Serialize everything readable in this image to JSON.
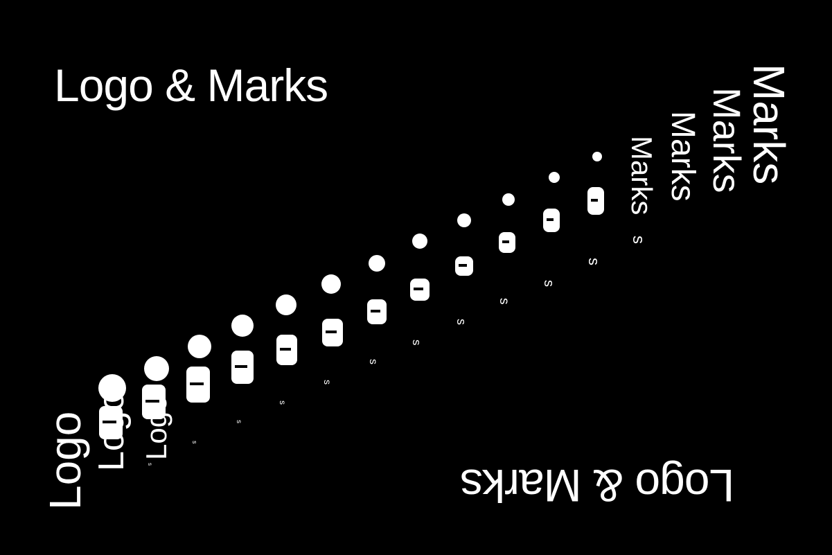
{
  "title_top": "Logo & Marks",
  "title_bottom": "Logo & Marks",
  "start_word": "Logo",
  "end_word": "Marks",
  "mid_letter": "s",
  "colors": {
    "background": "#000000",
    "foreground": "#ffffff"
  }
}
